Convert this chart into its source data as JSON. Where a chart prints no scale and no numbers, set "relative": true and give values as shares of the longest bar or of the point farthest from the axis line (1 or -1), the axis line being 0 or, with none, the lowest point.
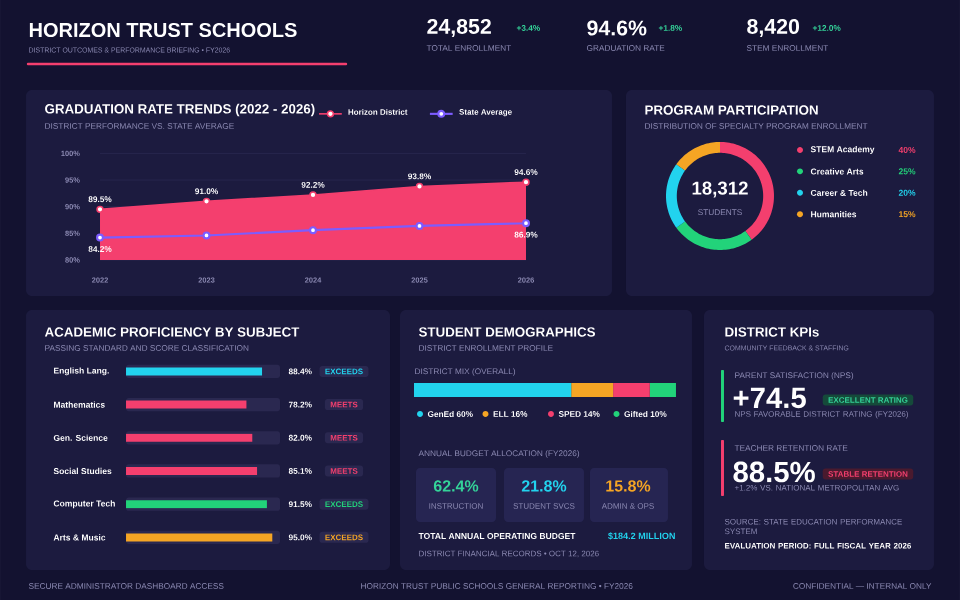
{
  "chart_data": [
    {
      "type": "other",
      "title": "HORIZON TRUST SCHOOLS",
      "subtitle": "DISTRICT OUTCOMES & PERFORMANCE BRIEFING • FY2026",
      "annotations": [
        "24,852",
        "+3.4%",
        "TOTAL ENROLLMENT",
        "94.6%",
        "+1.8%",
        "GRADUATION RATE",
        "8,420",
        "+12.0%",
        "STEM ENROLLMENT",
        "SECURE ADMINISTRATOR DASHBOARD ACCESS",
        "HORIZON TRUST PUBLIC SCHOOLS GENERAL REPORTING • FY2026",
        "CONFIDENTIAL — INTERNAL ONLY"
      ]
    },
    {
      "type": "line",
      "title": "GRADUATION RATE TRENDS (2022 - 2026)",
      "subtitle": "DISTRICT PERFORMANCE VS. STATE AVERAGE",
      "categories": [
        "2022",
        "2023",
        "2024",
        "2025",
        "2026"
      ],
      "series": [
        {
          "name": "Horizon District",
          "type": "area",
          "color": "#f43f6e",
          "values": [
            89.5,
            91.0,
            92.2,
            93.8,
            94.6
          ],
          "value_labels": [
            "89.5%",
            "91.0%",
            "92.2%",
            "93.8%",
            "94.6%"
          ]
        },
        {
          "name": "State Average",
          "color": "#7c5cff",
          "values": [
            84.2,
            84.6,
            85.6,
            86.4,
            86.9
          ],
          "value_labels": [
            "84.2%",
            null,
            null,
            null,
            "86.9%"
          ]
        }
      ],
      "ylim": [
        80,
        100
      ],
      "yticks": [
        {
          "value": 80,
          "label": "80%"
        },
        {
          "value": 85,
          "label": "85%"
        },
        {
          "value": 90,
          "label": "90%"
        },
        {
          "value": 95,
          "label": "95%"
        },
        {
          "value": 100,
          "label": "100%"
        }
      ],
      "grid": "y",
      "legend": "top right",
      "marker": "circle"
    },
    {
      "type": "donut",
      "title": "PROGRAM PARTICIPATION",
      "subtitle": "DISTRIBUTION OF SPECIALTY PROGRAM ENROLLMENT",
      "categories": [
        "STEM Academy",
        "Creative Arts",
        "Career & Tech",
        "Humanities"
      ],
      "values": [
        40,
        25,
        20,
        15
      ],
      "colors": [
        "#f43f6e",
        "#22d37a",
        "#22d3ee",
        "#f5a524"
      ],
      "value_labels": [
        "40%",
        "25%",
        "20%",
        "15%"
      ],
      "annotations": [
        "18,312",
        "STUDENTS"
      ],
      "legend": "right"
    },
    {
      "type": "bar",
      "orientation": "horizontal",
      "title": "ACADEMIC PROFICIENCY BY SUBJECT",
      "subtitle": "PASSING STANDARD AND SCORE CLASSIFICATION",
      "categories": [
        "English Lang.",
        "Mathematics",
        "Gen. Science",
        "Social Studies",
        "Computer Tech",
        "Arts & Music"
      ],
      "values": [
        88.4,
        78.2,
        82.0,
        85.1,
        91.5,
        95.0
      ],
      "colors": [
        "#22d3ee",
        "#f43f6e",
        "#f43f6e",
        "#f43f6e",
        "#22d37a",
        "#f5a524"
      ],
      "value_labels": [
        "88.4%",
        "78.2%",
        "82.0%",
        "85.1%",
        "91.5%",
        "95.0%"
      ],
      "annotations": [
        "EXCEEDS",
        "MEETS",
        "MEETS",
        "MEETS",
        "EXCEEDS",
        "EXCEEDS"
      ],
      "xlim": [
        0,
        100
      ],
      "tick_labels": "y"
    },
    {
      "type": "bar",
      "orientation": "horizontal",
      "stacked": true,
      "title": "STUDENT DEMOGRAPHICS",
      "subtitle": "DISTRICT ENROLLMENT PROFILE",
      "categories": [
        null
      ],
      "series": [
        {
          "name": "GenEd 60%",
          "color": "#22d3ee",
          "values": [
            0.6
          ]
        },
        {
          "name": "ELL 16%",
          "color": "#f5a524",
          "values": [
            0.16
          ]
        },
        {
          "name": "SPED 14%",
          "color": "#f43f6e",
          "values": [
            0.14
          ]
        },
        {
          "name": "Gifted 10%",
          "color": "#22d37a",
          "values": [
            0.1
          ]
        }
      ],
      "annotations": [
        "DISTRICT MIX (OVERALL)"
      ],
      "relative": true,
      "tick_labels": false,
      "legend": "bottom"
    },
    {
      "type": "other",
      "title": "ANNUAL BUDGET ALLOCATION (FY2026)",
      "annotations": [
        "62.4%",
        "INSTRUCTION",
        "21.8%",
        "STUDENT SVCS",
        "15.8%",
        "ADMIN & OPS",
        "TOTAL ANNUAL OPERATING BUDGET",
        "$184.2 MILLION",
        "DISTRICT FINANCIAL RECORDS • OCT 12, 2026"
      ]
    },
    {
      "type": "other",
      "title": "DISTRICT KPIs",
      "subtitle": "COMMUNITY FEEDBACK & STAFFING",
      "annotations": [
        "PARENT SATISFACTION (NPS)",
        "+74.5",
        "EXCELLENT RATING",
        "NPS FAVORABLE DISTRICT RATING (FY2026)",
        "TEACHER RETENTION RATE",
        "88.5%",
        "STABLE RETENTION",
        "+1.2% VS. NATIONAL METROPOLITAN AVG",
        "SOURCE: STATE EDUCATION PERFORMANCE SYSTEM",
        "EVALUATION PERIOD: FULL FISCAL YEAR 2026"
      ]
    }
  ]
}
